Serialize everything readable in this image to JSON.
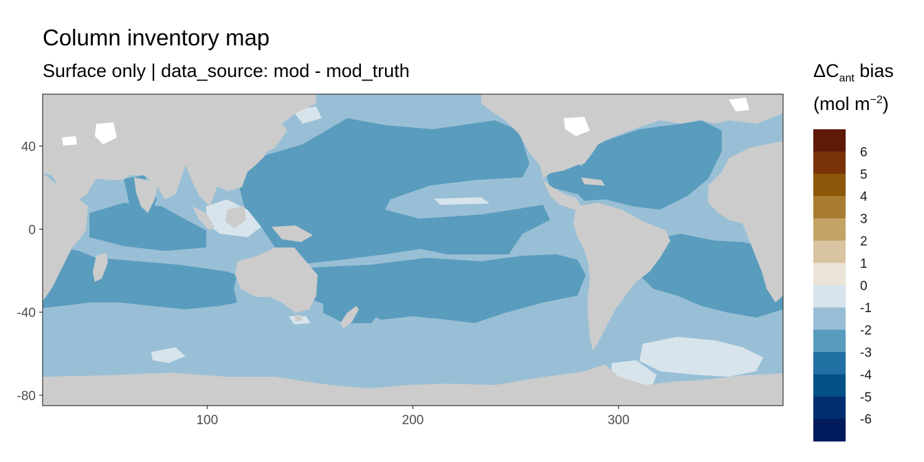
{
  "chart_data": {
    "type": "heatmap",
    "title": "Column inventory map",
    "subtitle": "Surface only | data_source: mod - mod_truth",
    "legend_title_line1": "ΔC",
    "legend_title_sub": "ant",
    "legend_title_line1_tail": " bias",
    "legend_title_line2_open": "(mol m",
    "legend_title_sup": "−2",
    "legend_title_line2_close": ")",
    "xlim": [
      20,
      380
    ],
    "ylim": [
      -85,
      65
    ],
    "x_ticks": [
      100,
      200,
      300
    ],
    "y_ticks": [
      40,
      0,
      -40,
      -80
    ],
    "grid": false,
    "legend_position": "right",
    "land_color": "#cccccc",
    "colorbar": [
      {
        "label": "6",
        "color": "#5e1a06"
      },
      {
        "label": "5",
        "color": "#7a3308"
      },
      {
        "label": "4",
        "color": "#8a5808"
      },
      {
        "label": "3",
        "color": "#a97d31"
      },
      {
        "label": "2",
        "color": "#c4a466"
      },
      {
        "label": "1",
        "color": "#d8c4a0"
      },
      {
        "label": "0",
        "color": "#ece4d6"
      },
      {
        "label": "-1",
        "color": "#d7e4ec"
      },
      {
        "label": "-2",
        "color": "#98bfd5"
      },
      {
        "label": "-3",
        "color": "#5a9cbd"
      },
      {
        "label": "-4",
        "color": "#2170a4"
      },
      {
        "label": "-5",
        "color": "#045188"
      },
      {
        "label": "-6",
        "color": "#012f72"
      },
      {
        "label": "",
        "color": "#001a5b"
      }
    ]
  }
}
